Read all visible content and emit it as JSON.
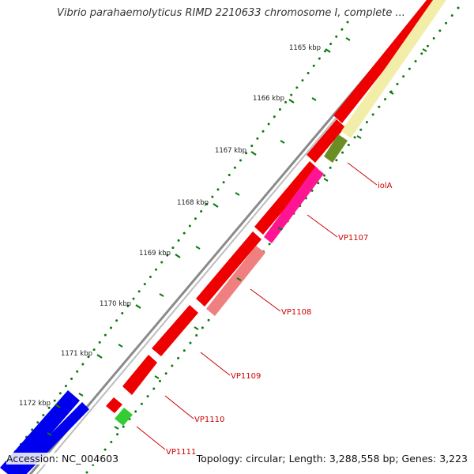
{
  "map": {
    "title": "Vibrio parahaemolyticus RIMD 2210633 chromosome I, complete ...",
    "accession_text": "Accession: NC_004603",
    "summary_text": "Topology: circular; Length: 3,288,558 bp; Genes: 3,223",
    "colors": {
      "backbone": "#7a7a7a",
      "gene_red": "#ee0000",
      "gene_blue": "#0000ee",
      "gene_green": "#33cc33",
      "cog_yellow": "#f2eeaa",
      "cog_olive": "#6b8e23",
      "cog_magenta": "#ff1493",
      "cog_salmon": "#f08080",
      "tick_green": "#0a7a0a",
      "label_red": "#cc0000"
    },
    "ticks": [
      {
        "label": "1165 kbp"
      },
      {
        "label": "1166 kbp"
      },
      {
        "label": "1167 kbp"
      },
      {
        "label": "1168 kbp"
      },
      {
        "label": "1169 kbp"
      },
      {
        "label": "1170 kbp"
      },
      {
        "label": "1171 kbp"
      },
      {
        "label": "1172 kbp"
      }
    ],
    "gene_labels": [
      {
        "name": "iolA"
      },
      {
        "name": "VP1107"
      },
      {
        "name": "VP1108"
      },
      {
        "name": "VP1109"
      },
      {
        "name": "VP1110"
      },
      {
        "name": "VP1111"
      }
    ]
  }
}
